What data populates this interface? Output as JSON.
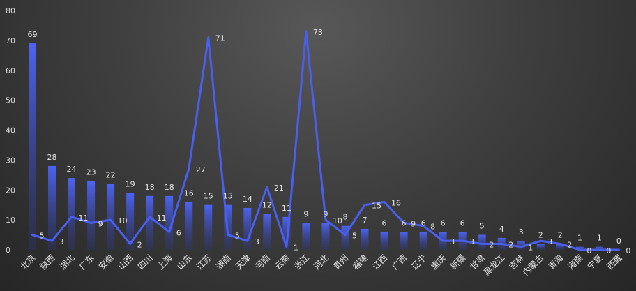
{
  "chart_data": {
    "type": "bar",
    "categories": [
      "北京",
      "陕西",
      "湖北",
      "广东",
      "安徽",
      "山西",
      "四川",
      "上海",
      "山东",
      "江苏",
      "湖南",
      "天津",
      "河南",
      "云南",
      "浙江",
      "河北",
      "贵州",
      "福建",
      "江西",
      "广西",
      "辽宁",
      "重庆",
      "新疆",
      "甘肃",
      "黑龙江",
      "吉林",
      "内蒙古",
      "青海",
      "海南",
      "宁夏",
      "西藏"
    ],
    "series": [
      {
        "type": "bar",
        "values": [
          69,
          28,
          24,
          23,
          22,
          19,
          18,
          18,
          16,
          15,
          15,
          14,
          12,
          11,
          9,
          9,
          8,
          7,
          6,
          6,
          6,
          6,
          6,
          5,
          4,
          3,
          2,
          2,
          1,
          1,
          0
        ]
      },
      {
        "type": "line",
        "values": [
          5,
          3,
          11,
          9,
          10,
          2,
          11,
          6,
          27,
          71,
          5,
          3,
          21,
          1,
          73,
          10,
          5,
          15,
          16,
          9,
          8,
          3,
          3,
          2,
          2,
          1,
          3,
          2,
          0,
          0,
          0
        ]
      }
    ],
    "ylim": [
      0,
      80
    ],
    "yticks": [
      0,
      10,
      20,
      30,
      40,
      50,
      60,
      70,
      80
    ],
    "grid": false,
    "colors": {
      "bar_top": "#4d64f2",
      "bar_bottom": "#2c3578",
      "line": "#4a5ff0"
    }
  }
}
